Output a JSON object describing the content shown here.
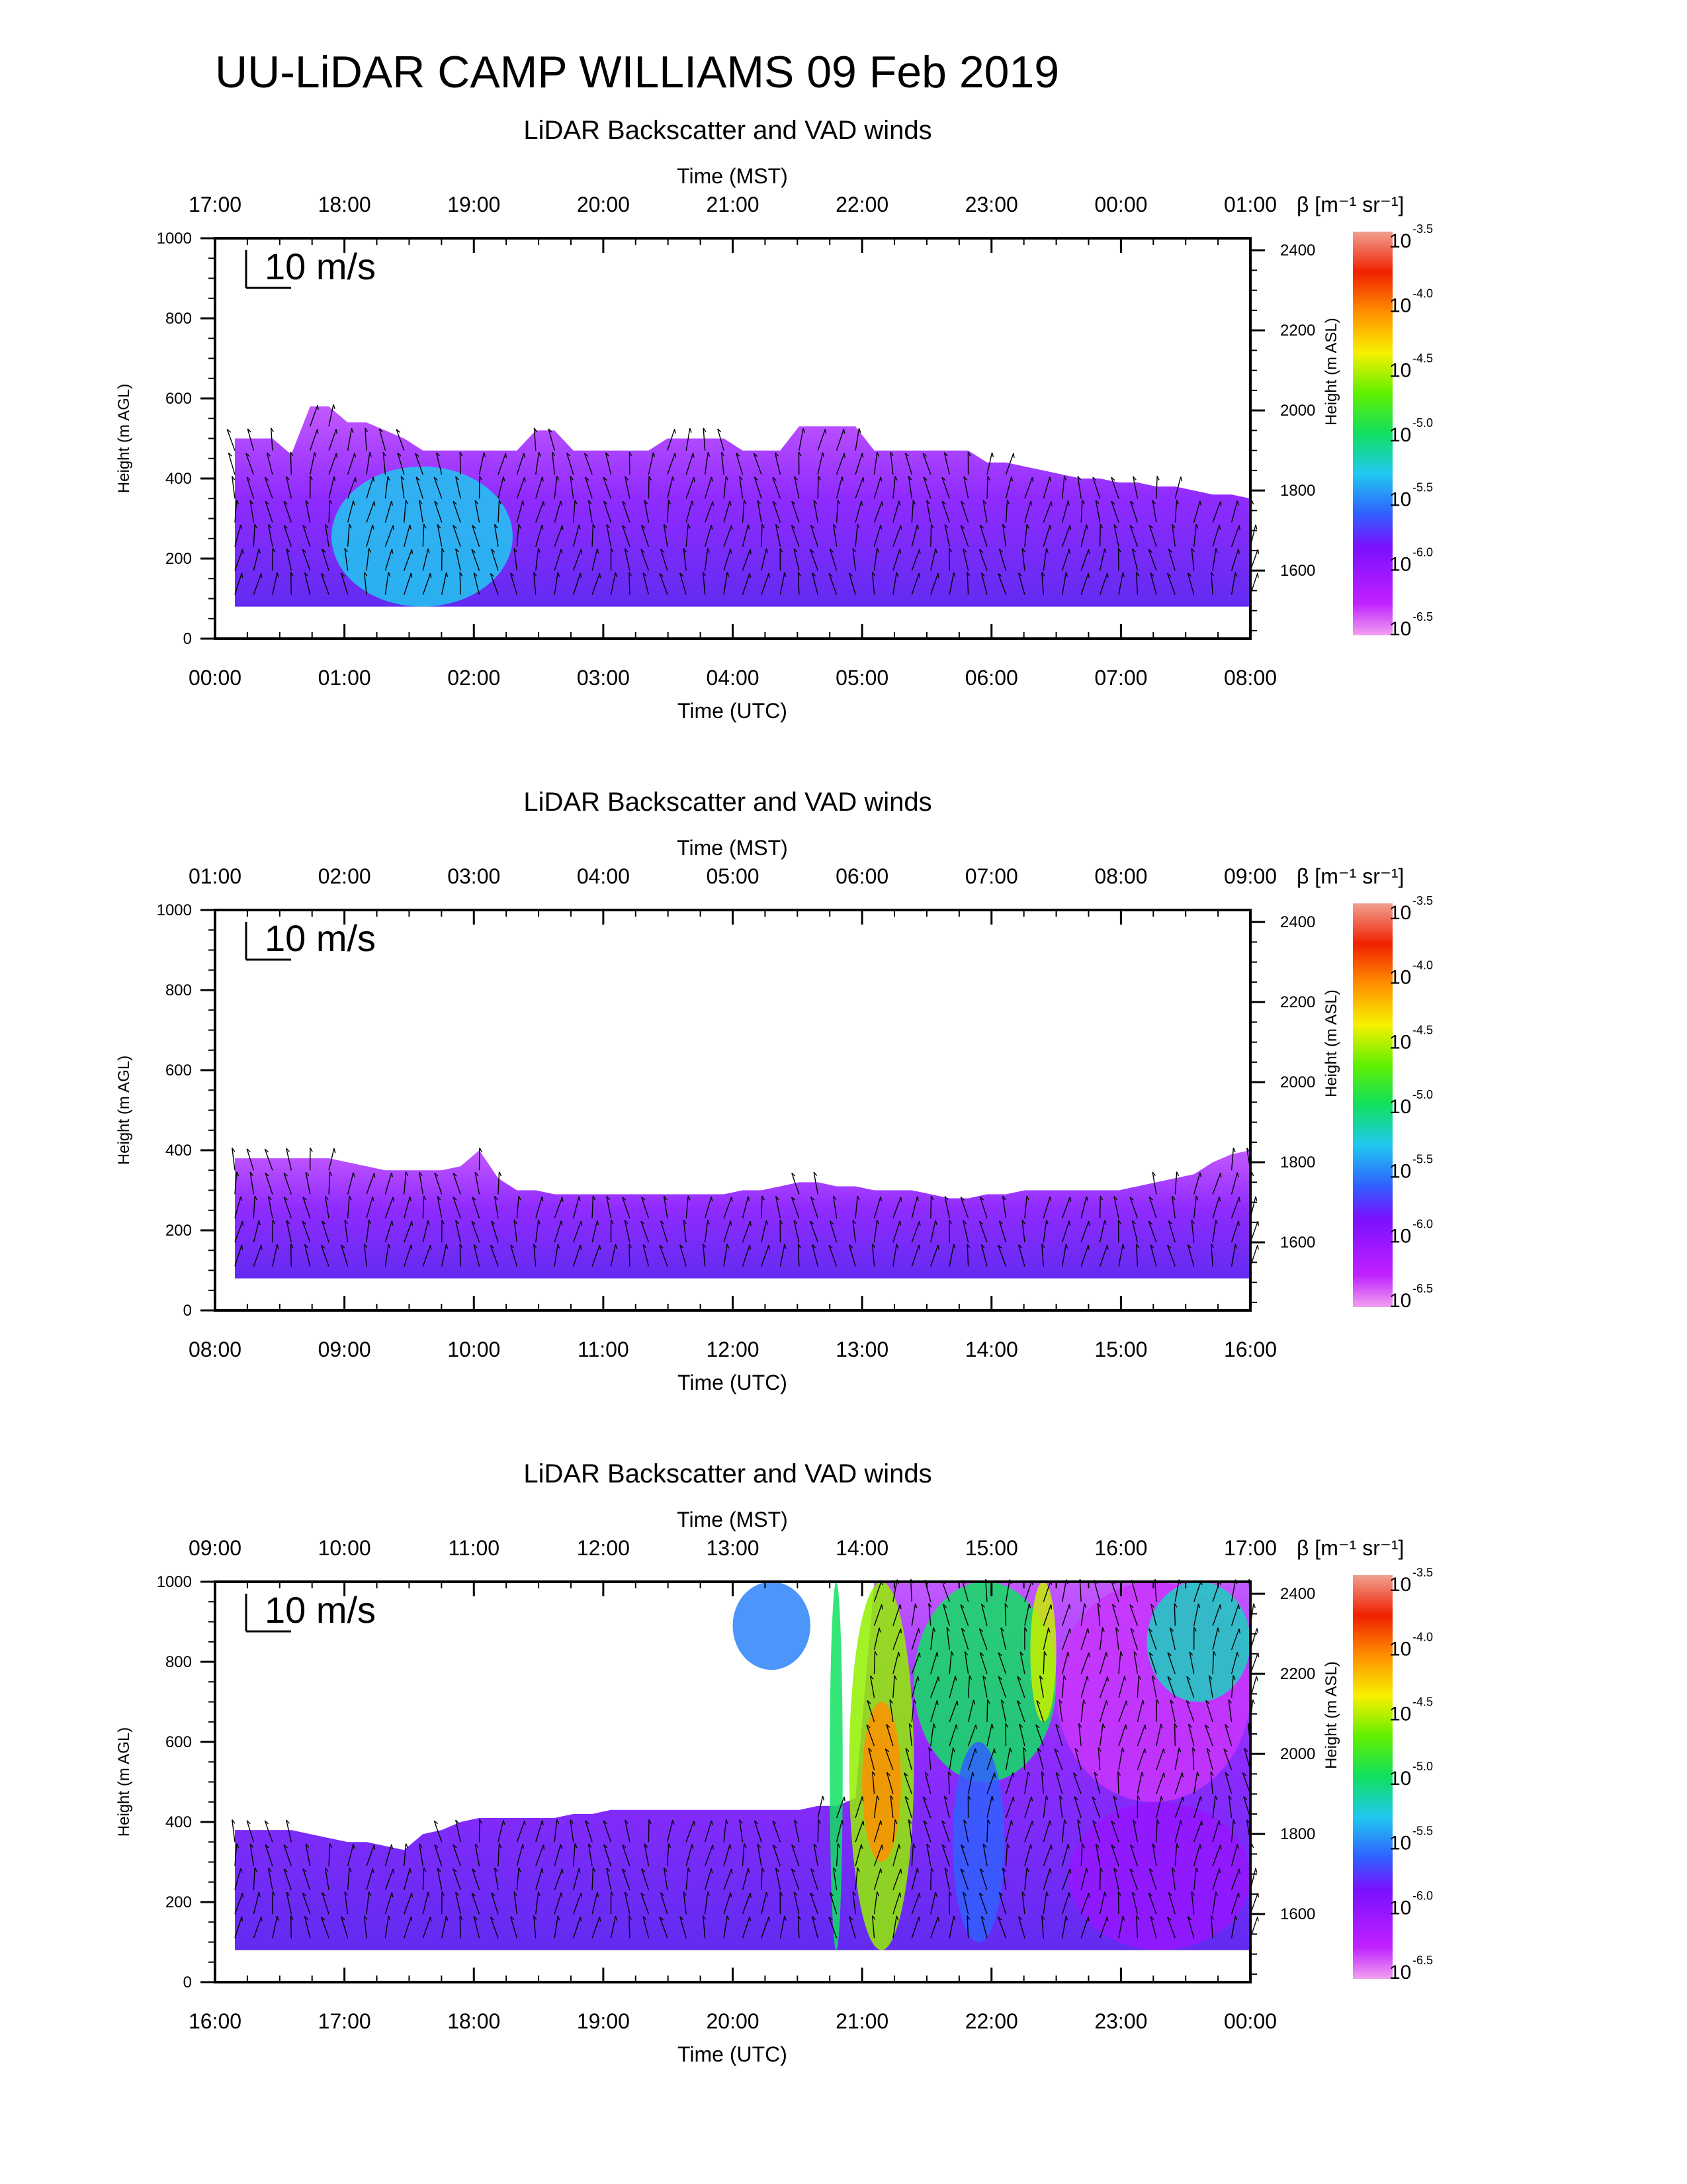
{
  "page": {
    "title": "UU-LiDAR CAMP WILLIAMS 09 Feb 2019"
  },
  "chart_data": [
    {
      "type": "heatmap",
      "title": "LiDAR Backscatter and VAD winds",
      "top_axis_title": "Time (MST)",
      "top_ticks": [
        "17:00",
        "18:00",
        "19:00",
        "20:00",
        "21:00",
        "22:00",
        "23:00",
        "00:00",
        "01:00"
      ],
      "xlabel": "Time (UTC)",
      "x_ticks": [
        "00:00",
        "01:00",
        "02:00",
        "03:00",
        "04:00",
        "05:00",
        "06:00",
        "07:00",
        "08:00"
      ],
      "ylabel": "Height (m AGL)",
      "y_ticks": [
        "0",
        "200",
        "400",
        "600",
        "800",
        "1000"
      ],
      "ylim": [
        0,
        1000
      ],
      "ylabel_right": "Height (m ASL)",
      "y_right_ticks": [
        "1600",
        "1800",
        "2000",
        "2200",
        "2400"
      ],
      "wind_scale_label": "10 m/s",
      "colorbar_title": "β [m⁻¹ sr⁻¹]",
      "colorbar_exponents": [
        "-3.5",
        "-4.0",
        "-4.5",
        "-5.0",
        "-5.5",
        "-6.0",
        "-6.5"
      ],
      "colorbar_base": "10",
      "layer_top": [
        500,
        500,
        500,
        460,
        580,
        580,
        540,
        540,
        520,
        500,
        470,
        470,
        470,
        470,
        470,
        470,
        520,
        520,
        470,
        470,
        470,
        470,
        470,
        500,
        500,
        500,
        500,
        470,
        470,
        470,
        530,
        530,
        530,
        530,
        470,
        470,
        470,
        470,
        470,
        470,
        440,
        440,
        430,
        420,
        410,
        400,
        400,
        390,
        390,
        380,
        380,
        370,
        360,
        360,
        350
      ],
      "layer_bottom": 80,
      "features": [
        {
          "x0": 0.9,
          "x1": 2.3,
          "h0": 80,
          "h1": 430,
          "level": -5.3
        }
      ]
    },
    {
      "type": "heatmap",
      "title": "LiDAR Backscatter and VAD winds",
      "top_axis_title": "Time (MST)",
      "top_ticks": [
        "01:00",
        "02:00",
        "03:00",
        "04:00",
        "05:00",
        "06:00",
        "07:00",
        "08:00",
        "09:00"
      ],
      "xlabel": "Time (UTC)",
      "x_ticks": [
        "08:00",
        "09:00",
        "10:00",
        "11:00",
        "12:00",
        "13:00",
        "14:00",
        "15:00",
        "16:00"
      ],
      "ylabel": "Height (m AGL)",
      "y_ticks": [
        "0",
        "200",
        "400",
        "600",
        "800",
        "1000"
      ],
      "ylim": [
        0,
        1000
      ],
      "ylabel_right": "Height (m ASL)",
      "y_right_ticks": [
        "1600",
        "1800",
        "2000",
        "2200",
        "2400"
      ],
      "wind_scale_label": "10 m/s",
      "colorbar_title": "β [m⁻¹ sr⁻¹]",
      "colorbar_exponents": [
        "-3.5",
        "-4.0",
        "-4.5",
        "-5.0",
        "-5.5",
        "-6.0",
        "-6.5"
      ],
      "colorbar_base": "10",
      "layer_top": [
        380,
        380,
        380,
        380,
        380,
        380,
        370,
        360,
        350,
        350,
        350,
        350,
        360,
        400,
        330,
        300,
        300,
        290,
        290,
        290,
        290,
        290,
        290,
        290,
        290,
        290,
        290,
        300,
        300,
        310,
        320,
        320,
        310,
        310,
        300,
        300,
        300,
        290,
        280,
        280,
        290,
        290,
        300,
        300,
        300,
        300,
        300,
        300,
        310,
        320,
        330,
        340,
        370,
        390,
        400
      ],
      "layer_bottom": 80,
      "features": []
    },
    {
      "type": "heatmap",
      "title": "LiDAR Backscatter and VAD winds",
      "top_axis_title": "Time (MST)",
      "top_ticks": [
        "09:00",
        "10:00",
        "11:00",
        "12:00",
        "13:00",
        "14:00",
        "15:00",
        "16:00",
        "17:00"
      ],
      "xlabel": "Time (UTC)",
      "x_ticks": [
        "16:00",
        "17:00",
        "18:00",
        "19:00",
        "20:00",
        "21:00",
        "22:00",
        "23:00",
        "00:00"
      ],
      "ylabel": "Height (m AGL)",
      "y_ticks": [
        "0",
        "200",
        "400",
        "600",
        "800",
        "1000"
      ],
      "ylim": [
        0,
        1000
      ],
      "ylabel_right": "Height (m ASL)",
      "y_right_ticks": [
        "1600",
        "1800",
        "2000",
        "2200",
        "2400"
      ],
      "wind_scale_label": "10 m/s",
      "colorbar_title": "β [m⁻¹ sr⁻¹]",
      "colorbar_exponents": [
        "-3.5",
        "-4.0",
        "-4.5",
        "-5.0",
        "-5.5",
        "-6.0",
        "-6.5"
      ],
      "colorbar_base": "10",
      "layer_top": [
        380,
        380,
        380,
        380,
        370,
        360,
        350,
        350,
        340,
        330,
        370,
        380,
        400,
        410,
        410,
        410,
        410,
        410,
        420,
        420,
        430,
        430,
        430,
        430,
        430,
        430,
        430,
        430,
        430,
        430,
        430,
        440,
        440,
        460,
        1000,
        1000,
        1000,
        1000,
        1000,
        1000,
        1000,
        1000,
        1000,
        1000,
        1000,
        1000,
        1000,
        1000,
        1000,
        1000,
        1000,
        1000,
        1000,
        1000,
        1000
      ],
      "layer_bottom": 80,
      "features": [
        {
          "x0": 4.0,
          "x1": 4.6,
          "h0": 780,
          "h1": 1000,
          "level": -5.5
        },
        {
          "x0": 4.75,
          "x1": 4.85,
          "h0": 80,
          "h1": 1000,
          "level": -5.0
        },
        {
          "x0": 4.9,
          "x1": 5.4,
          "h0": 80,
          "h1": 1000,
          "level": -4.6
        },
        {
          "x0": 5.0,
          "x1": 5.3,
          "h0": 300,
          "h1": 700,
          "level": -4.1
        },
        {
          "x0": 5.4,
          "x1": 6.5,
          "h0": 500,
          "h1": 1000,
          "level": -5.0
        },
        {
          "x0": 5.7,
          "x1": 6.1,
          "h0": 100,
          "h1": 600,
          "level": -5.6
        },
        {
          "x0": 6.3,
          "x1": 6.5,
          "h0": 650,
          "h1": 1000,
          "level": -4.5
        },
        {
          "x0": 6.5,
          "x1": 8.0,
          "h0": 450,
          "h1": 1000,
          "level": -6.3
        },
        {
          "x0": 7.2,
          "x1": 8.0,
          "h0": 700,
          "h1": 1000,
          "level": -5.2
        },
        {
          "x0": 6.6,
          "x1": 8.0,
          "h0": 80,
          "h1": 450,
          "level": -6.0
        }
      ]
    }
  ]
}
